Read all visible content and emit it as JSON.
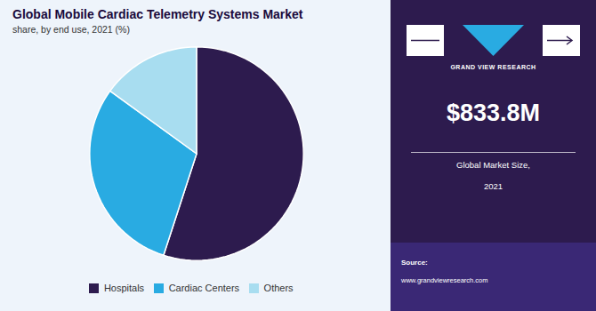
{
  "chart_data": {
    "type": "pie",
    "title": "Global Mobile Cardiac Telemetry Systems Market",
    "subtitle": "share, by end use, 2021 (%)",
    "categories": [
      "Hospitals",
      "Cardiac Centers",
      "Others"
    ],
    "values": [
      55.0,
      30.0,
      15.0
    ],
    "colors": [
      "#2d1b4e",
      "#29abe2",
      "#a8ddf0"
    ],
    "legend": "bottom",
    "annotations": [
      "GRAND VIEW RESEARCH",
      "$833.8M",
      "Global Market Size,",
      "2021",
      "Source:",
      "www.grandviewresearch.com"
    ]
  }
}
